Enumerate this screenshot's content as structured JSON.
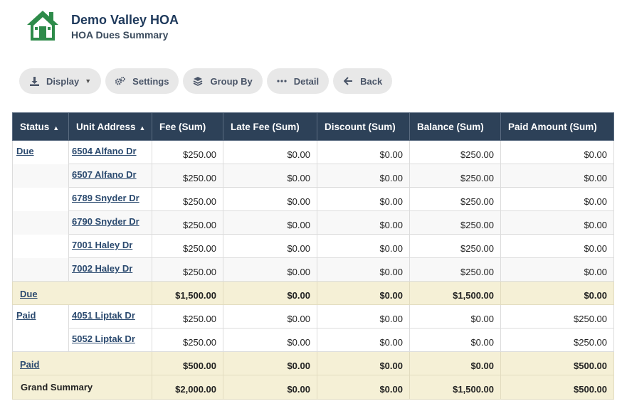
{
  "header": {
    "title": "Demo Valley HOA",
    "subtitle": "HOA Dues Summary",
    "logo_icon": "house-icon",
    "logo_color": "#2e8b4a"
  },
  "toolbar": {
    "display_label": "Display",
    "settings_label": "Settings",
    "group_by_label": "Group By",
    "detail_label": "Detail",
    "back_label": "Back"
  },
  "table": {
    "columns": [
      "Status",
      "Unit Address",
      "Fee (Sum)",
      "Late Fee (Sum)",
      "Discount (Sum)",
      "Balance (Sum)",
      "Paid Amount (Sum)"
    ],
    "groups": [
      {
        "status": "Due",
        "rows": [
          {
            "address": "6504 Alfano Dr",
            "fee": "$250.00",
            "late_fee": "$0.00",
            "discount": "$0.00",
            "balance": "$250.00",
            "paid": "$0.00"
          },
          {
            "address": "6507 Alfano Dr",
            "fee": "$250.00",
            "late_fee": "$0.00",
            "discount": "$0.00",
            "balance": "$250.00",
            "paid": "$0.00"
          },
          {
            "address": "6789 Snyder Dr",
            "fee": "$250.00",
            "late_fee": "$0.00",
            "discount": "$0.00",
            "balance": "$250.00",
            "paid": "$0.00"
          },
          {
            "address": "6790 Snyder Dr",
            "fee": "$250.00",
            "late_fee": "$0.00",
            "discount": "$0.00",
            "balance": "$250.00",
            "paid": "$0.00"
          },
          {
            "address": "7001 Haley Dr",
            "fee": "$250.00",
            "late_fee": "$0.00",
            "discount": "$0.00",
            "balance": "$250.00",
            "paid": "$0.00"
          },
          {
            "address": "7002 Haley Dr",
            "fee": "$250.00",
            "late_fee": "$0.00",
            "discount": "$0.00",
            "balance": "$250.00",
            "paid": "$0.00"
          }
        ],
        "subtotal": {
          "label": "Due",
          "fee": "$1,500.00",
          "late_fee": "$0.00",
          "discount": "$0.00",
          "balance": "$1,500.00",
          "paid": "$0.00"
        }
      },
      {
        "status": "Paid",
        "rows": [
          {
            "address": "4051 Liptak Dr",
            "fee": "$250.00",
            "late_fee": "$0.00",
            "discount": "$0.00",
            "balance": "$0.00",
            "paid": "$250.00"
          },
          {
            "address": "5052 Liptak Dr",
            "fee": "$250.00",
            "late_fee": "$0.00",
            "discount": "$0.00",
            "balance": "$0.00",
            "paid": "$250.00"
          }
        ],
        "subtotal": {
          "label": "Paid",
          "fee": "$500.00",
          "late_fee": "$0.00",
          "discount": "$0.00",
          "balance": "$0.00",
          "paid": "$500.00"
        }
      }
    ],
    "grand": {
      "label": "Grand Summary",
      "fee": "$2,000.00",
      "late_fee": "$0.00",
      "discount": "$0.00",
      "balance": "$1,500.00",
      "paid": "$500.00"
    }
  }
}
